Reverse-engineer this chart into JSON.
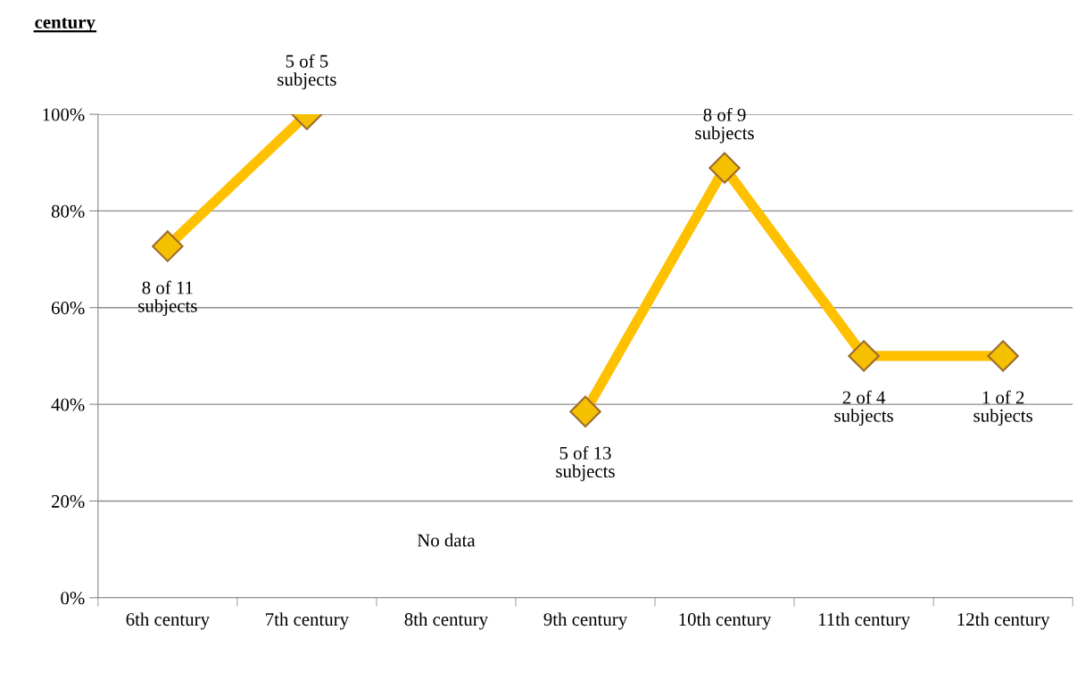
{
  "chart_data": {
    "type": "line",
    "title": "century",
    "categories": [
      "6th century",
      "7th century",
      "8th century",
      "9th century",
      "10th century",
      "11th century",
      "12th century"
    ],
    "series": [
      {
        "color": "#ffc000",
        "values": [
          72.7,
          100,
          null,
          38.5,
          88.9,
          50,
          50
        ]
      }
    ],
    "ylim": [
      0,
      100
    ],
    "yticks": [
      {
        "value": 0,
        "label": "0%"
      },
      {
        "value": 20,
        "label": "20%"
      },
      {
        "value": 40,
        "label": "40%"
      },
      {
        "value": 60,
        "label": "60%"
      },
      {
        "value": 80,
        "label": "80%"
      },
      {
        "value": 100,
        "label": "100%"
      }
    ],
    "annotations": [
      {
        "text": "8 of 11\nsubjects",
        "x": "6th century",
        "y": 72.7
      },
      {
        "text": "5 of 5\nsubjects",
        "x": "7th century",
        "y": 100
      },
      {
        "text": "5 of 13\nsubjects",
        "x": "9th century",
        "y": 38.5
      },
      {
        "text": "8 of 9\nsubjects",
        "x": "10th century",
        "y": 88.9
      },
      {
        "text": "2 of 4\nsubjects",
        "x": "11th century",
        "y": 50
      },
      {
        "text": "1 of 2\nsubjects",
        "x": "12th century",
        "y": 50
      },
      "No data"
    ],
    "grid": "y",
    "marker": "diamond",
    "line_style": "solid"
  }
}
